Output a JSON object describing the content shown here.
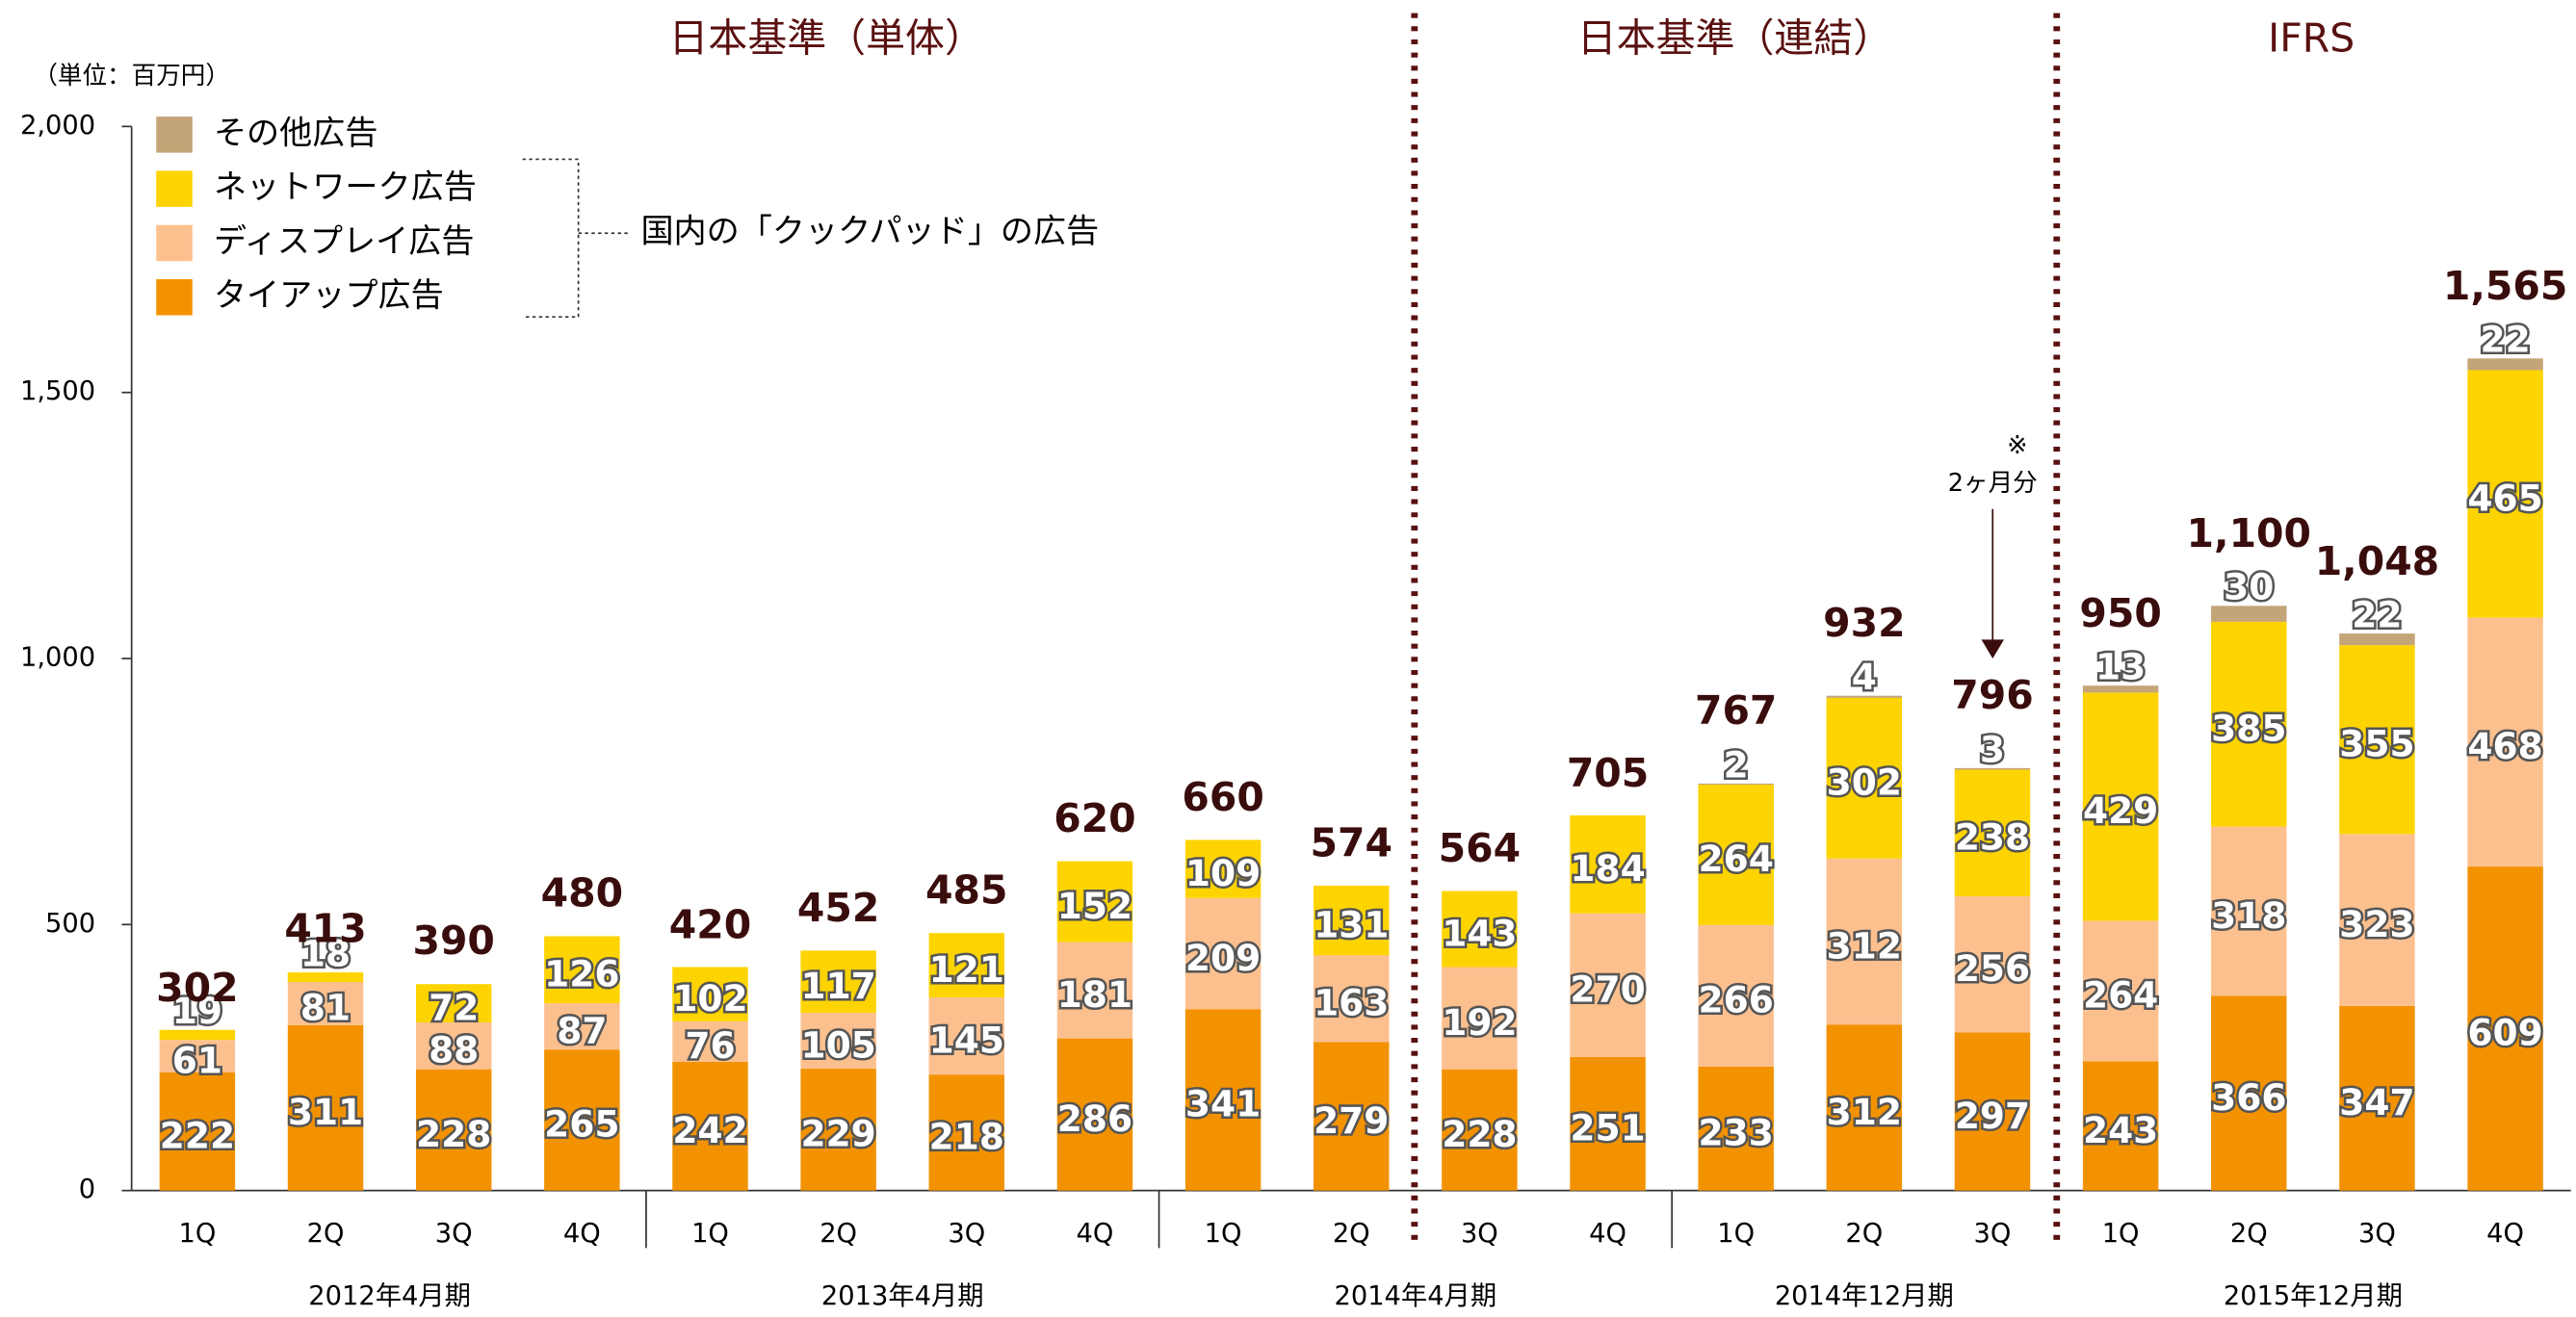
{
  "chart_data": {
    "type": "stacked_bar",
    "unit_label": "（単位：百万円）",
    "section_titles": [
      "日本基準（単体）",
      "日本基準（連結）",
      "IFRS"
    ],
    "categories": [
      "1Q",
      "2Q",
      "3Q",
      "4Q",
      "1Q",
      "2Q",
      "3Q",
      "4Q",
      "1Q",
      "2Q",
      "3Q",
      "4Q",
      "1Q",
      "2Q",
      "3Q",
      "1Q",
      "2Q",
      "3Q",
      "4Q"
    ],
    "periods": [
      "2012年4月期",
      "2013年4月期",
      "2014年4月期",
      "2014年12月期",
      "2015年12月期"
    ],
    "series": [
      {
        "name": "タイアップ広告",
        "color": "#f39200",
        "values": [
          222,
          311,
          228,
          265,
          242,
          229,
          218,
          286,
          341,
          279,
          228,
          251,
          233,
          312,
          297,
          243,
          366,
          347,
          609
        ]
      },
      {
        "name": "ディスプレイ広告",
        "color": "#fcc08f",
        "values": [
          61,
          81,
          88,
          87,
          76,
          105,
          145,
          181,
          209,
          163,
          192,
          270,
          266,
          312,
          256,
          264,
          318,
          323,
          468
        ]
      },
      {
        "name": "ネットワーク広告",
        "color": "#fdd400",
        "values": [
          19,
          18,
          72,
          126,
          102,
          117,
          121,
          152,
          109,
          131,
          143,
          184,
          264,
          302,
          238,
          429,
          385,
          355,
          465
        ]
      },
      {
        "name": "その他広告",
        "color": "#c4a577",
        "values": [
          null,
          null,
          null,
          null,
          null,
          null,
          null,
          null,
          null,
          null,
          null,
          null,
          2,
          4,
          3,
          13,
          30,
          22,
          22
        ]
      }
    ],
    "totals": {
      "values": [
        302,
        413,
        390,
        480,
        420,
        452,
        485,
        620,
        660,
        574,
        564,
        705,
        767,
        932,
        796,
        950,
        1100,
        1048,
        1565
      ],
      "value_labels": [
        "302",
        "413",
        "390",
        "480",
        "420",
        "452",
        "485",
        "620",
        "660",
        "574",
        "564",
        "705",
        "767",
        "932",
        "796",
        "950",
        "1,100",
        "1,048",
        "1,565"
      ]
    },
    "legend_bracket_label": "国内の「クックパッド」の広告",
    "annotation": {
      "mark": "※",
      "text": "2ヶ月分"
    },
    "ylim": [
      0,
      2000
    ],
    "yticks": [
      0,
      500,
      {
        "value": 1000,
        "label": "1,000"
      },
      {
        "value": 1500,
        "label": "1,500"
      },
      {
        "value": 2000,
        "label": "2,000"
      }
    ]
  }
}
